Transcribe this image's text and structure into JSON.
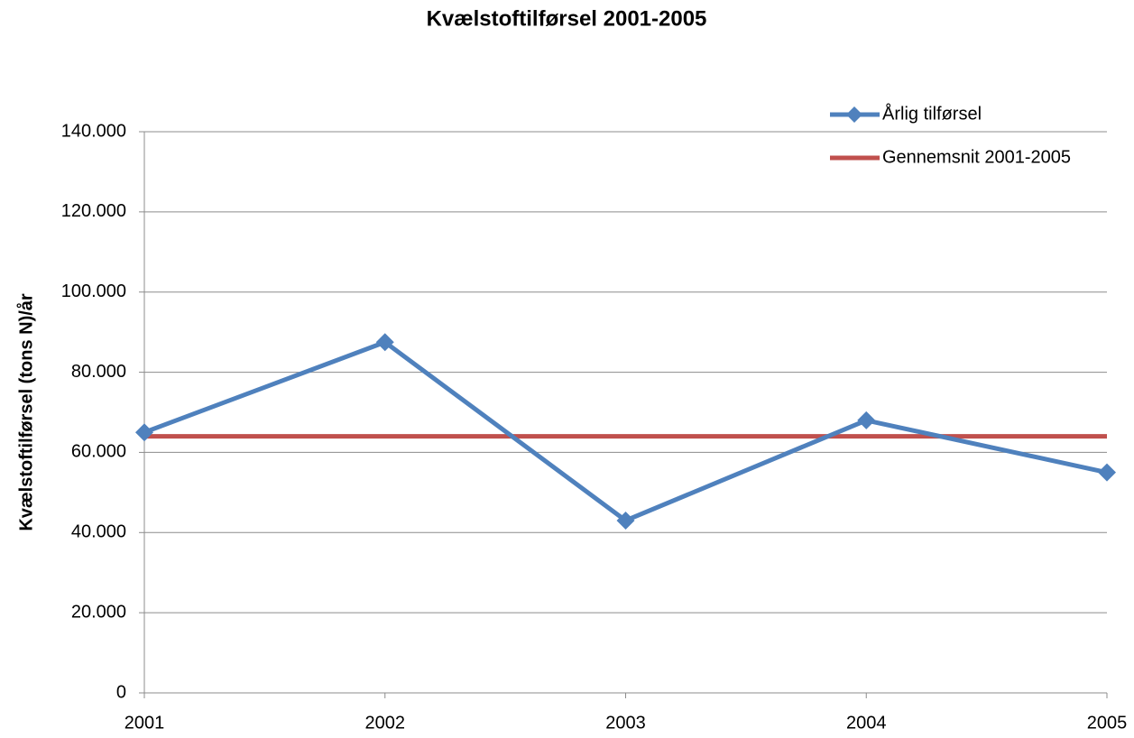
{
  "chart_data": {
    "type": "line",
    "title": "Kvælstoftilførsel 2001-2005",
    "y_label": "Kvælstoftilførsel (tons N)/år",
    "categories": [
      "2001",
      "2002",
      "2003",
      "2004",
      "2005"
    ],
    "series": [
      {
        "name": "Årlig tilførsel",
        "color": "#4f81bd",
        "marker": "diamond",
        "values": [
          65000,
          87500,
          43000,
          68000,
          55000
        ]
      },
      {
        "name": "Gennemsnit 2001-2005",
        "color": "#c0504d",
        "marker": "none",
        "values": [
          64000,
          64000,
          64000,
          64000,
          64000
        ]
      }
    ],
    "ylim": [
      0,
      140000
    ],
    "yticks": [
      0,
      {
        "value": 20000,
        "label": "20.000"
      },
      {
        "value": 40000,
        "label": "40.000"
      },
      {
        "value": 60000,
        "label": "60.000"
      },
      {
        "value": 80000,
        "label": "80.000"
      },
      {
        "value": 100000,
        "label": "100.000"
      },
      {
        "value": 120000,
        "label": "120.000"
      },
      {
        "value": 140000,
        "label": "140.000"
      }
    ],
    "grid": true,
    "legend": "top-right"
  }
}
